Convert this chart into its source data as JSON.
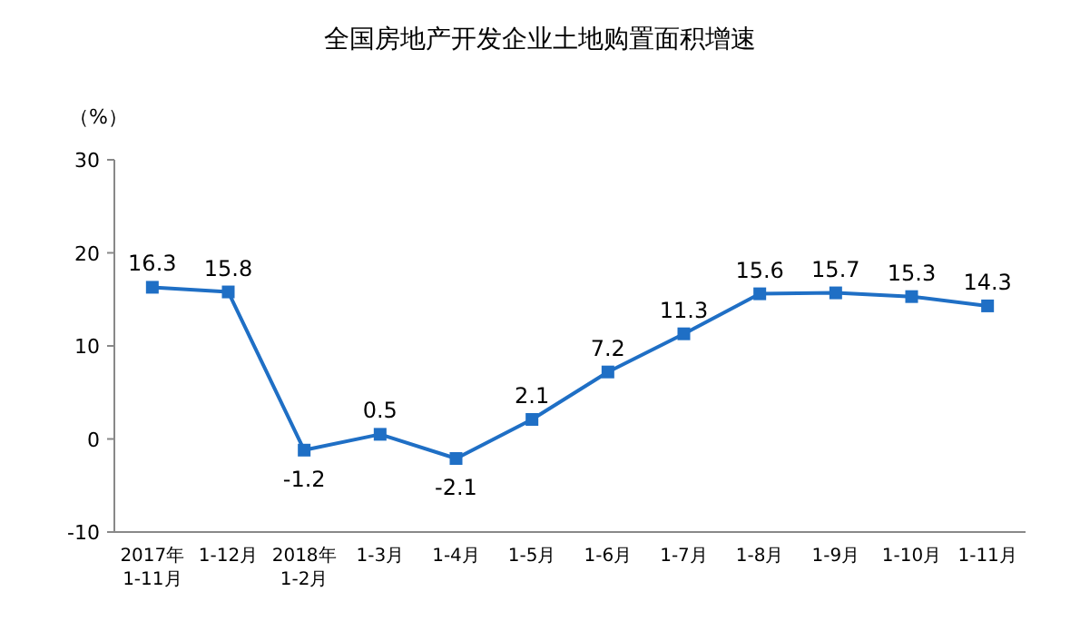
{
  "chart_data": {
    "type": "line",
    "title": "全国房地产开发企业土地购置面积增速",
    "ylabel": "（%）",
    "categories": [
      "2017年\n1-11月",
      "1-12月",
      "2018年\n1-2月",
      "1-3月",
      "1-4月",
      "1-5月",
      "1-6月",
      "1-7月",
      "1-8月",
      "1-9月",
      "1-10月",
      "1-11月"
    ],
    "series": [
      {
        "color": "#1f6fc5",
        "values": [
          16.3,
          15.8,
          -1.2,
          0.5,
          -2.1,
          2.1,
          7.2,
          11.3,
          15.6,
          15.7,
          15.3,
          14.3
        ]
      }
    ],
    "ylim": [
      -10,
      30
    ],
    "yticks": [
      -10,
      0,
      10,
      20,
      30
    ],
    "marker": "square",
    "line_style": "solid",
    "data_labels": true,
    "grid": false
  }
}
